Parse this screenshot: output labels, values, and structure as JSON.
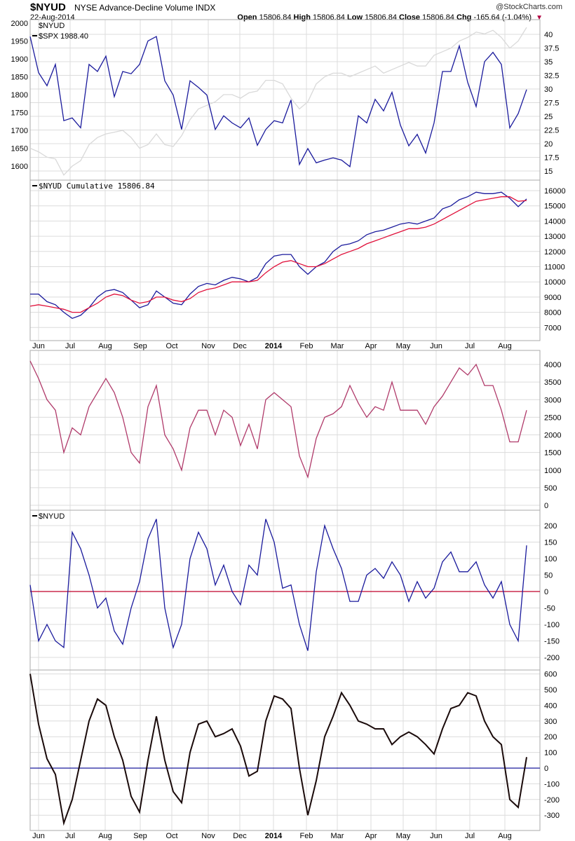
{
  "header": {
    "symbol": "$NYUD",
    "description": "NYSE Advance-Decline Volume INDX",
    "copyright": "@StockCharts.com",
    "date": "22-Aug-2014",
    "open_label": "Open",
    "open": "15806.84",
    "high_label": "High",
    "high": "15806.84",
    "low_label": "Low",
    "low": "15806.84",
    "close_label": "Close",
    "close": "15806.84",
    "chg_label": "Chg",
    "chg": "-165.64 (-1.04%)",
    "chg_arrow": "▼"
  },
  "colors": {
    "nyud": "#1a1a9c",
    "spx": "#d9d9d9",
    "ma": "#e0103a",
    "pane3": "#b03a6a",
    "pane5": "#1a0a0a",
    "zero4": "#c0002a",
    "zero5": "#1a1a9c",
    "grid": "#dcdcdc"
  },
  "chart_data": [
    {
      "type": "line",
      "title": "$NYUD",
      "legend": [
        "$NYUD",
        "$SPX 1988.40"
      ],
      "left_axis": {
        "series": "$SPX",
        "ylim": [
          1600,
          2000
        ],
        "step": 50
      },
      "right_axis": {
        "series": "$NYUD (thousands)",
        "ylim": [
          15.0,
          40.0
        ],
        "step": 2.5
      },
      "series": [
        {
          "name": "$NYUD",
          "axis": "right",
          "values": [
            39.6,
            33,
            30.6,
            34.5,
            24.2,
            24.7,
            22.9,
            34.5,
            33.2,
            36,
            28.6,
            33.2,
            32.8,
            34.5,
            38.8,
            39.6,
            31.5,
            28.9,
            22.6,
            31.5,
            30.3,
            28.9,
            22.6,
            25.1,
            23.8,
            22.9,
            24.7,
            19.7,
            22.6,
            24.2,
            23.8,
            28,
            16.2,
            19.1,
            16.5,
            17,
            17.4,
            17,
            15.8,
            25.1,
            23.8,
            28.1,
            26,
            29.4,
            23.4,
            19.6,
            21.7,
            18.3,
            23.8,
            33.2,
            33.2,
            37.9,
            31.2,
            26.8,
            35,
            36.7,
            34.5,
            22.9,
            25.5,
            29.9
          ]
        },
        {
          "name": "$SPX",
          "axis": "left",
          "values": [
            1650,
            1640,
            1625,
            1620,
            1575,
            1600,
            1615,
            1660,
            1680,
            1690,
            1695,
            1700,
            1680,
            1650,
            1660,
            1690,
            1660,
            1655,
            1685,
            1730,
            1760,
            1770,
            1780,
            1800,
            1800,
            1790,
            1805,
            1810,
            1840,
            1840,
            1830,
            1790,
            1760,
            1780,
            1830,
            1850,
            1860,
            1860,
            1850,
            1860,
            1870,
            1880,
            1860,
            1870,
            1880,
            1890,
            1880,
            1880,
            1910,
            1920,
            1930,
            1950,
            1960,
            1975,
            1970,
            1980,
            1960,
            1930,
            1950,
            1988
          ]
        }
      ]
    },
    {
      "type": "line",
      "legend": [
        "$NYUD Cumulative 15806.84"
      ],
      "right_axis": {
        "ylim": [
          7000,
          16000
        ],
        "step": 1000
      },
      "series": [
        {
          "name": "$NYUD Cumulative",
          "values": [
            9200,
            9200,
            8700,
            8500,
            8000,
            7600,
            7800,
            8300,
            9000,
            9400,
            9500,
            9300,
            8800,
            8300,
            8500,
            9400,
            9000,
            8600,
            8500,
            9200,
            9700,
            9900,
            9800,
            10100,
            10300,
            10200,
            10000,
            10300,
            11200,
            11700,
            11800,
            11800,
            11000,
            10500,
            11000,
            11300,
            12000,
            12400,
            12500,
            12700,
            13100,
            13300,
            13400,
            13600,
            13800,
            13900,
            13800,
            14000,
            14200,
            14800,
            15000,
            15400,
            15600,
            15900,
            15800,
            15800,
            15900,
            15500,
            14950,
            15450
          ]
        },
        {
          "name": "Moving Average",
          "values": [
            8400,
            8500,
            8400,
            8300,
            8200,
            8000,
            8000,
            8300,
            8600,
            9000,
            9200,
            9100,
            8800,
            8600,
            8700,
            9000,
            9000,
            8800,
            8700,
            8900,
            9300,
            9500,
            9600,
            9800,
            10000,
            10000,
            10000,
            10100,
            10600,
            11000,
            11300,
            11400,
            11200,
            11000,
            11000,
            11200,
            11500,
            11800,
            12000,
            12200,
            12500,
            12700,
            12900,
            13100,
            13300,
            13500,
            13500,
            13600,
            13800,
            14100,
            14400,
            14700,
            15000,
            15300,
            15400,
            15500,
            15600,
            15600,
            15300,
            15350
          ]
        }
      ]
    },
    {
      "type": "line",
      "right_axis": {
        "ylim": [
          0,
          4000
        ],
        "step": 500
      },
      "series": [
        {
          "name": "indicator",
          "values": [
            4100,
            3600,
            3000,
            2700,
            1500,
            2200,
            2000,
            2800,
            3200,
            3600,
            3200,
            2500,
            1500,
            1200,
            2800,
            3400,
            2000,
            1600,
            1000,
            2200,
            2700,
            2700,
            2000,
            2700,
            2500,
            1700,
            2300,
            1600,
            3000,
            3200,
            3000,
            2800,
            1400,
            800,
            1900,
            2500,
            2600,
            2800,
            3400,
            2900,
            2500,
            2800,
            2700,
            3500,
            2700,
            2700,
            2700,
            2300,
            2800,
            3100,
            3500,
            3900,
            3700,
            4000,
            3400,
            3400,
            2700,
            1800,
            1800,
            2700
          ]
        }
      ]
    },
    {
      "type": "line",
      "legend": [
        "$NYUD"
      ],
      "right_axis": {
        "ylim": [
          -200,
          200
        ],
        "step": 50
      },
      "zero_line": 0,
      "series": [
        {
          "name": "$NYUD",
          "values": [
            20,
            -150,
            -100,
            -150,
            -170,
            180,
            130,
            50,
            -50,
            -20,
            -120,
            -160,
            -50,
            30,
            160,
            220,
            -50,
            -170,
            -100,
            100,
            180,
            130,
            20,
            80,
            0,
            -40,
            80,
            50,
            220,
            150,
            10,
            20,
            -100,
            -180,
            60,
            200,
            130,
            70,
            -30,
            -30,
            50,
            70,
            40,
            90,
            50,
            -30,
            30,
            -20,
            10,
            90,
            120,
            60,
            60,
            90,
            20,
            -20,
            30,
            -100,
            -150,
            140
          ]
        }
      ]
    },
    {
      "type": "line",
      "right_axis": {
        "ylim": [
          -300,
          600
        ],
        "step": 100
      },
      "zero_line": 0,
      "series": [
        {
          "name": "oscillator",
          "values": [
            600,
            280,
            60,
            -40,
            -350,
            -200,
            50,
            300,
            440,
            400,
            200,
            50,
            -180,
            -280,
            50,
            330,
            50,
            -150,
            -220,
            100,
            280,
            300,
            200,
            220,
            250,
            140,
            -50,
            -20,
            300,
            460,
            440,
            380,
            0,
            -300,
            -80,
            200,
            330,
            480,
            400,
            300,
            280,
            250,
            250,
            150,
            200,
            230,
            200,
            150,
            90,
            250,
            380,
            400,
            480,
            460,
            300,
            200,
            150,
            -200,
            -250,
            70
          ]
        }
      ]
    }
  ],
  "x_axis": {
    "months": [
      "Jun",
      "Jul",
      "Aug",
      "Sep",
      "Oct",
      "Nov",
      "Dec",
      "2014",
      "Feb",
      "Mar",
      "Apr",
      "May",
      "Jun",
      "Jul",
      "Aug"
    ]
  }
}
